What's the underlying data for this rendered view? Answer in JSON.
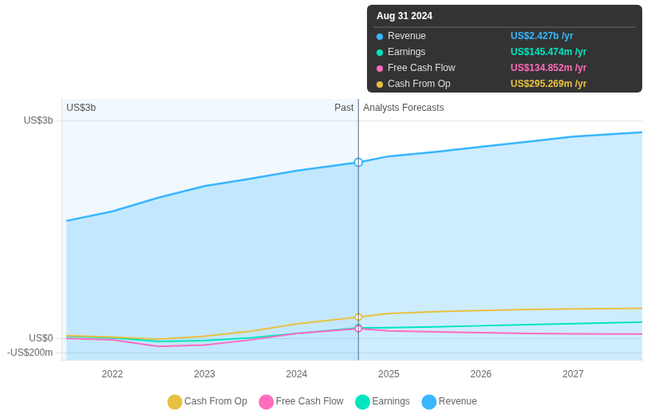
{
  "chart_data": {
    "type": "line",
    "x": [
      2021.5,
      2022.0,
      2022.5,
      2023.0,
      2023.5,
      2024.0,
      2024.67,
      2025.0,
      2025.5,
      2026.0,
      2026.5,
      2027.0,
      2027.75
    ],
    "series": [
      {
        "name": "Revenue",
        "color": "#38b6ff",
        "type": "area",
        "values": [
          1620,
          1750,
          1940,
          2100,
          2200,
          2310,
          2427,
          2510,
          2570,
          2640,
          2710,
          2780,
          2840
        ]
      },
      {
        "name": "Earnings",
        "color": "#00e5c0",
        "type": "line",
        "values": [
          30,
          10,
          -40,
          -30,
          10,
          70,
          145,
          150,
          160,
          175,
          190,
          205,
          225
        ]
      },
      {
        "name": "Free Cash Flow",
        "color": "#ff6bbd",
        "type": "line",
        "values": [
          0,
          -20,
          -110,
          -90,
          -20,
          70,
          135,
          105,
          90,
          80,
          70,
          65,
          60
        ]
      },
      {
        "name": "Cash From Op",
        "color": "#e8c040",
        "type": "line",
        "values": [
          40,
          20,
          -10,
          30,
          100,
          200,
          295,
          345,
          370,
          385,
          398,
          408,
          415
        ]
      }
    ],
    "xlim": [
      2021.45,
      2027.75
    ],
    "ylim": [
      -300,
      3300
    ],
    "xticks": [
      2022,
      2023,
      2024,
      2025,
      2026,
      2027
    ],
    "yticks": [
      {
        "value": -200,
        "label": "-US$200m"
      },
      {
        "value": 0,
        "label": "US$0"
      },
      {
        "value": 3000,
        "label": "US$3b"
      }
    ],
    "grid": true,
    "legend": "bottom",
    "divider": {
      "x": 2024.67,
      "left_label": "Past",
      "right_label": "Analysts Forecasts"
    },
    "annotations": [
      "US$3b"
    ],
    "tooltip": {
      "title": "Aug 31 2024",
      "rows": [
        {
          "name": "Revenue",
          "value": 2427,
          "label": "US$2.427b /yr"
        },
        {
          "name": "Earnings",
          "value": 145.474,
          "label": "US$145.474m /yr"
        },
        {
          "name": "Free Cash Flow",
          "value": 134.852,
          "label": "US$134.852m /yr"
        },
        {
          "name": "Cash From Op",
          "value": 295.269,
          "label": "US$295.269m /yr"
        }
      ]
    }
  }
}
